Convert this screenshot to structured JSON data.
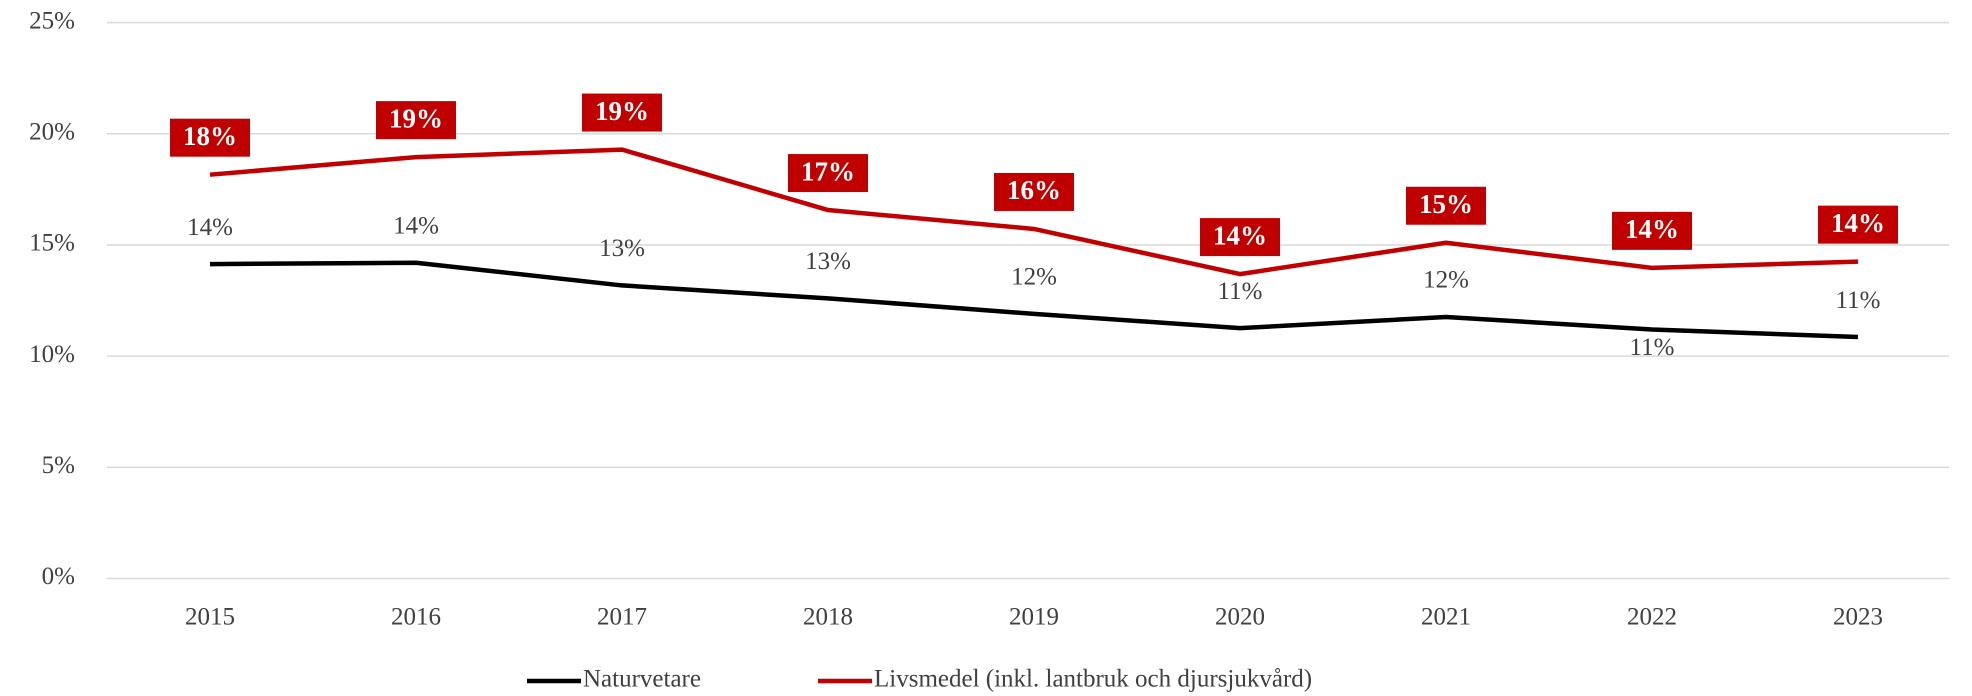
{
  "chart_data": {
    "type": "line",
    "categories": [
      "2015",
      "2016",
      "2017",
      "2018",
      "2019",
      "2020",
      "2021",
      "2022",
      "2023"
    ],
    "series": [
      {
        "name": "Naturvetare",
        "color": "#000000",
        "values": [
          14.14,
          14.2,
          13.18,
          12.6,
          11.9,
          11.26,
          11.76,
          11.2,
          10.86
        ],
        "value_labels": [
          "14%",
          "14%",
          "13%",
          "13%",
          "12%",
          "11%",
          "12%",
          "11%",
          "11%"
        ]
      },
      {
        "name": "Livsmedel (inkl. lantbruk och djursjukvård)",
        "color": "#c00000",
        "values": [
          18.16,
          18.95,
          19.29,
          16.57,
          15.72,
          13.69,
          15.1,
          13.97,
          14.25
        ],
        "value_labels": [
          "18%",
          "19%",
          "19%",
          "17%",
          "16%",
          "14%",
          "15%",
          "14%",
          "14%"
        ]
      }
    ],
    "ylim": [
      0,
      25
    ],
    "yticks": [
      {
        "value": 0,
        "label": "0%"
      },
      {
        "value": 5,
        "label": "5%"
      },
      {
        "value": 10,
        "label": "10%"
      },
      {
        "value": 15,
        "label": "15%"
      },
      {
        "value": 20,
        "label": "20%"
      },
      {
        "value": 25,
        "label": "25%"
      }
    ],
    "grid": true,
    "legend": "bottom"
  }
}
